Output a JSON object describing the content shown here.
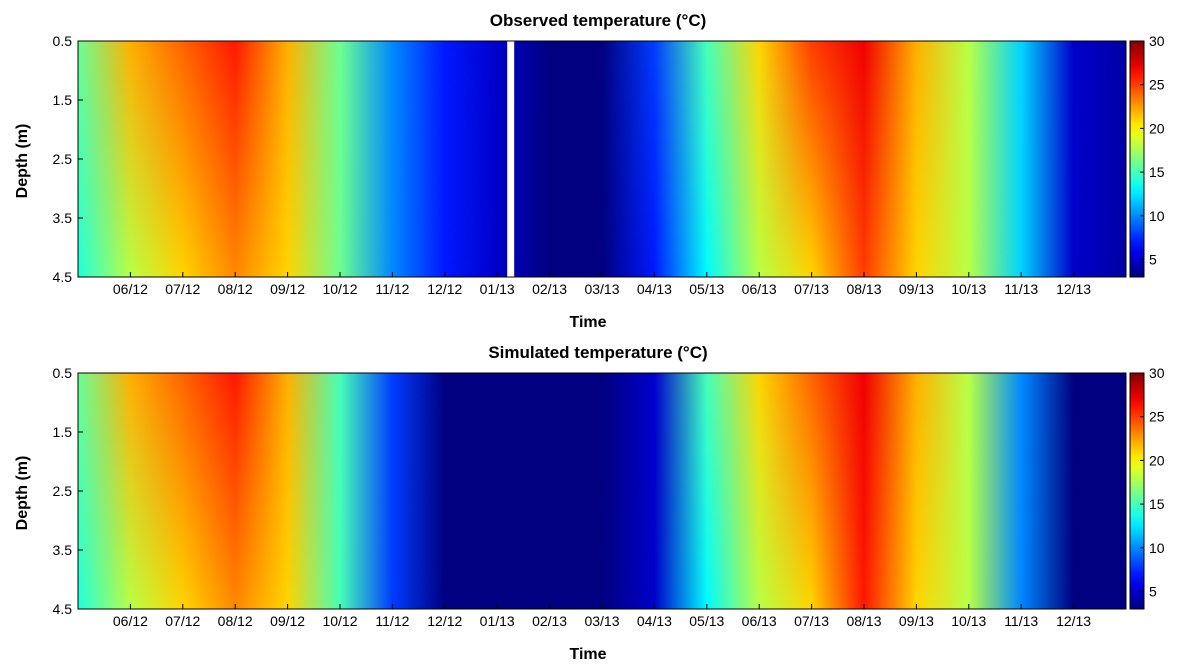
{
  "chart_data": [
    {
      "type": "heatmap",
      "title": "Observed temperature (°C)",
      "xlabel": "Time",
      "ylabel": "Depth (m)",
      "y_ticks": [
        "0.5",
        "1.5",
        "2.5",
        "3.5",
        "4.5"
      ],
      "ylim": [
        0.5,
        4.5
      ],
      "x_ticks": [
        "06/12",
        "07/12",
        "08/12",
        "09/12",
        "10/12",
        "11/12",
        "12/12",
        "01/13",
        "02/13",
        "03/13",
        "04/13",
        "05/13",
        "06/13",
        "07/13",
        "08/13",
        "09/13",
        "10/13",
        "11/13",
        "12/13"
      ],
      "x_range": [
        "05/12",
        "01/14"
      ],
      "data_gap": [
        "01/13",
        "02/13"
      ],
      "colorbar": {
        "min": 3,
        "max": 30,
        "ticks": [
          "5",
          "10",
          "15",
          "20",
          "25",
          "30"
        ],
        "colormap": "jet"
      },
      "temperature_profile": [
        {
          "month": "05/12",
          "surface": 16,
          "bottom": 14
        },
        {
          "month": "06/12",
          "surface": 22,
          "bottom": 18
        },
        {
          "month": "07/12",
          "surface": 24,
          "bottom": 21
        },
        {
          "month": "08/12",
          "surface": 26,
          "bottom": 23
        },
        {
          "month": "09/12",
          "surface": 22,
          "bottom": 21
        },
        {
          "month": "10/12",
          "surface": 16,
          "bottom": 16
        },
        {
          "month": "11/12",
          "surface": 10,
          "bottom": 10
        },
        {
          "month": "12/12",
          "surface": 7,
          "bottom": 7
        },
        {
          "month": "01/13",
          "surface": 5,
          "bottom": 5
        },
        {
          "month": "02/13",
          "surface": 3,
          "bottom": 3
        },
        {
          "month": "03/13",
          "surface": 3,
          "bottom": 3
        },
        {
          "month": "04/13",
          "surface": 8,
          "bottom": 7
        },
        {
          "month": "05/13",
          "surface": 15,
          "bottom": 13
        },
        {
          "month": "06/13",
          "surface": 21,
          "bottom": 18
        },
        {
          "month": "07/13",
          "surface": 25,
          "bottom": 21
        },
        {
          "month": "08/13",
          "surface": 27,
          "bottom": 25
        },
        {
          "month": "09/13",
          "surface": 22,
          "bottom": 21
        },
        {
          "month": "10/13",
          "surface": 18,
          "bottom": 18
        },
        {
          "month": "11/13",
          "surface": 12,
          "bottom": 12
        },
        {
          "month": "12/13",
          "surface": 5,
          "bottom": 5
        },
        {
          "month": "01/14",
          "surface": 4,
          "bottom": 4
        }
      ]
    },
    {
      "type": "heatmap",
      "title": "Simulated temperature (°C)",
      "xlabel": "Time",
      "ylabel": "Depth (m)",
      "y_ticks": [
        "0.5",
        "1.5",
        "2.5",
        "3.5",
        "4.5"
      ],
      "ylim": [
        0.5,
        4.5
      ],
      "x_ticks": [
        "06/12",
        "07/12",
        "08/12",
        "09/12",
        "10/12",
        "11/12",
        "12/12",
        "01/13",
        "02/13",
        "03/13",
        "04/13",
        "05/13",
        "06/13",
        "07/13",
        "08/13",
        "09/13",
        "10/13",
        "11/13",
        "12/13"
      ],
      "x_range": [
        "05/12",
        "01/14"
      ],
      "data_gap": null,
      "colorbar": {
        "min": 3,
        "max": 30,
        "ticks": [
          "5",
          "10",
          "15",
          "20",
          "25",
          "30"
        ],
        "colormap": "jet"
      },
      "temperature_profile": [
        {
          "month": "05/12",
          "surface": 16,
          "bottom": 14
        },
        {
          "month": "06/12",
          "surface": 22,
          "bottom": 18
        },
        {
          "month": "07/12",
          "surface": 24,
          "bottom": 21
        },
        {
          "month": "08/12",
          "surface": 26,
          "bottom": 23
        },
        {
          "month": "09/12",
          "surface": 22,
          "bottom": 21
        },
        {
          "month": "10/12",
          "surface": 15,
          "bottom": 15
        },
        {
          "month": "11/12",
          "surface": 8,
          "bottom": 8
        },
        {
          "month": "12/12",
          "surface": 3,
          "bottom": 3
        },
        {
          "month": "01/13",
          "surface": 3,
          "bottom": 3
        },
        {
          "month": "02/13",
          "surface": 3,
          "bottom": 3
        },
        {
          "month": "03/13",
          "surface": 3,
          "bottom": 3
        },
        {
          "month": "04/13",
          "surface": 5,
          "bottom": 5
        },
        {
          "month": "05/13",
          "surface": 15,
          "bottom": 13
        },
        {
          "month": "06/13",
          "surface": 21,
          "bottom": 18
        },
        {
          "month": "07/13",
          "surface": 24,
          "bottom": 21
        },
        {
          "month": "08/13",
          "surface": 27,
          "bottom": 26
        },
        {
          "month": "09/13",
          "surface": 22,
          "bottom": 21
        },
        {
          "month": "10/13",
          "surface": 18,
          "bottom": 18
        },
        {
          "month": "11/13",
          "surface": 10,
          "bottom": 10
        },
        {
          "month": "12/13",
          "surface": 3,
          "bottom": 3
        },
        {
          "month": "01/14",
          "surface": 3,
          "bottom": 3
        }
      ]
    }
  ]
}
